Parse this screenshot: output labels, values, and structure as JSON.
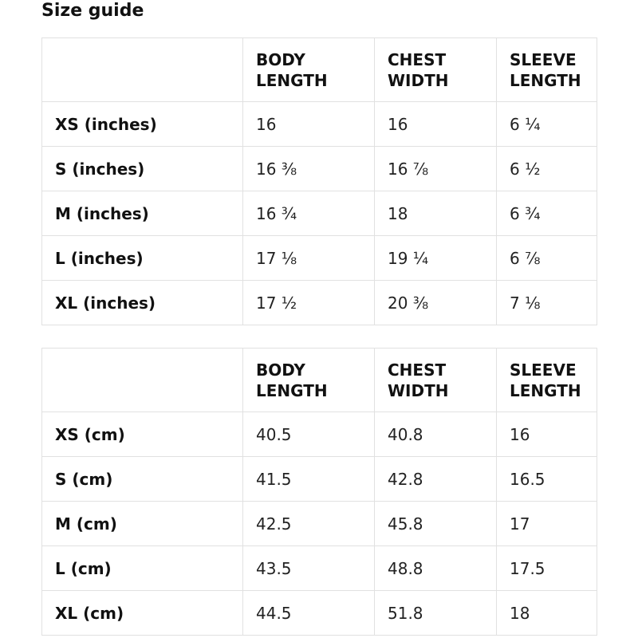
{
  "page": {
    "title": "Size guide"
  },
  "tables": [
    {
      "name": "size-table-inches",
      "unit": "inches",
      "columns": [
        "",
        "BODY LENGTH",
        "CHEST WIDTH",
        "SLEEVE LENGTH"
      ],
      "rows": [
        {
          "label": "XS (inches)",
          "values": [
            "16",
            "16",
            "6 ¼"
          ]
        },
        {
          "label": "S (inches)",
          "values": [
            "16 ⅜",
            "16 ⅞",
            "6 ½"
          ]
        },
        {
          "label": "M (inches)",
          "values": [
            "16 ¾",
            "18",
            "6 ¾"
          ]
        },
        {
          "label": "L (inches)",
          "values": [
            "17 ⅛",
            "19 ¼",
            "6 ⅞"
          ]
        },
        {
          "label": "XL (inches)",
          "values": [
            "17 ½",
            "20 ⅜",
            "7 ⅛"
          ]
        }
      ]
    },
    {
      "name": "size-table-cm",
      "unit": "cm",
      "columns": [
        "",
        "BODY LENGTH",
        "CHEST WIDTH",
        "SLEEVE LENGTH"
      ],
      "rows": [
        {
          "label": "XS (cm)",
          "values": [
            "40.5",
            "40.8",
            "16"
          ]
        },
        {
          "label": "S (cm)",
          "values": [
            "41.5",
            "42.8",
            "16.5"
          ]
        },
        {
          "label": "M (cm)",
          "values": [
            "42.5",
            "45.8",
            "17"
          ]
        },
        {
          "label": "L (cm)",
          "values": [
            "43.5",
            "48.8",
            "17.5"
          ]
        },
        {
          "label": "XL (cm)",
          "values": [
            "44.5",
            "51.8",
            "18"
          ]
        }
      ]
    }
  ]
}
